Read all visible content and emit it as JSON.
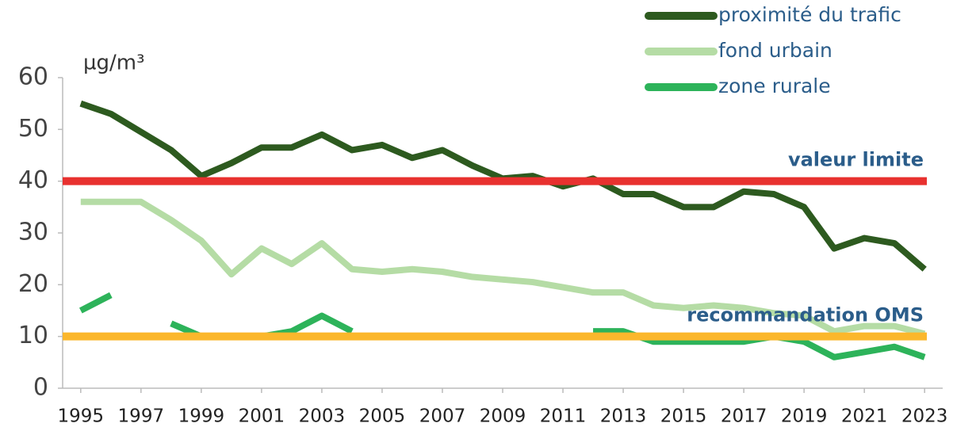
{
  "chart_data": {
    "type": "line",
    "y_unit": "µg/m³",
    "x": [
      1995,
      1996,
      1997,
      1998,
      1999,
      2000,
      2001,
      2002,
      2003,
      2004,
      2005,
      2006,
      2007,
      2008,
      2009,
      2010,
      2011,
      2012,
      2013,
      2014,
      2015,
      2016,
      2017,
      2018,
      2019,
      2020,
      2021,
      2022,
      2023
    ],
    "series": [
      {
        "name": "proximité du trafic",
        "color": "#2d5a1f",
        "values": [
          55,
          53,
          49.5,
          46,
          41,
          43.5,
          46.5,
          46.5,
          49,
          46,
          47,
          44.5,
          46,
          43,
          40.5,
          41,
          39,
          40.5,
          37.5,
          37.5,
          35,
          35,
          38,
          37.5,
          35,
          27,
          29,
          28,
          23
        ]
      },
      {
        "name": "fond urbain",
        "color": "#b5dca5",
        "values": [
          36,
          36,
          36,
          32.5,
          28.5,
          22,
          27,
          24,
          28,
          23,
          22.5,
          23,
          22.5,
          21.5,
          21,
          20.5,
          19.5,
          18.5,
          18.5,
          16,
          15.5,
          16,
          15.5,
          14.5,
          14,
          11,
          12,
          12,
          10.5
        ]
      },
      {
        "name": "zone rurale",
        "color": "#2db35a",
        "values": [
          15,
          18,
          null,
          12.5,
          10,
          10,
          10,
          11,
          14,
          11,
          null,
          null,
          null,
          null,
          null,
          null,
          null,
          11,
          11,
          9,
          9,
          9,
          9,
          10,
          9,
          6,
          7,
          8,
          6
        ]
      }
    ],
    "reference_lines": [
      {
        "value": 40,
        "label": "valeur limite",
        "color": "#e8312f"
      },
      {
        "value": 10,
        "label": "recommandation OMS",
        "color": "#fbb72c"
      }
    ],
    "xlim": [
      1994.4,
      2023.6
    ],
    "xticks": [
      1995,
      1997,
      1999,
      2001,
      2003,
      2005,
      2007,
      2009,
      2011,
      2013,
      2015,
      2017,
      2019,
      2021,
      2023
    ],
    "ylim": [
      0,
      60
    ],
    "yticks": [
      0,
      10,
      20,
      30,
      40,
      50,
      60
    ]
  }
}
